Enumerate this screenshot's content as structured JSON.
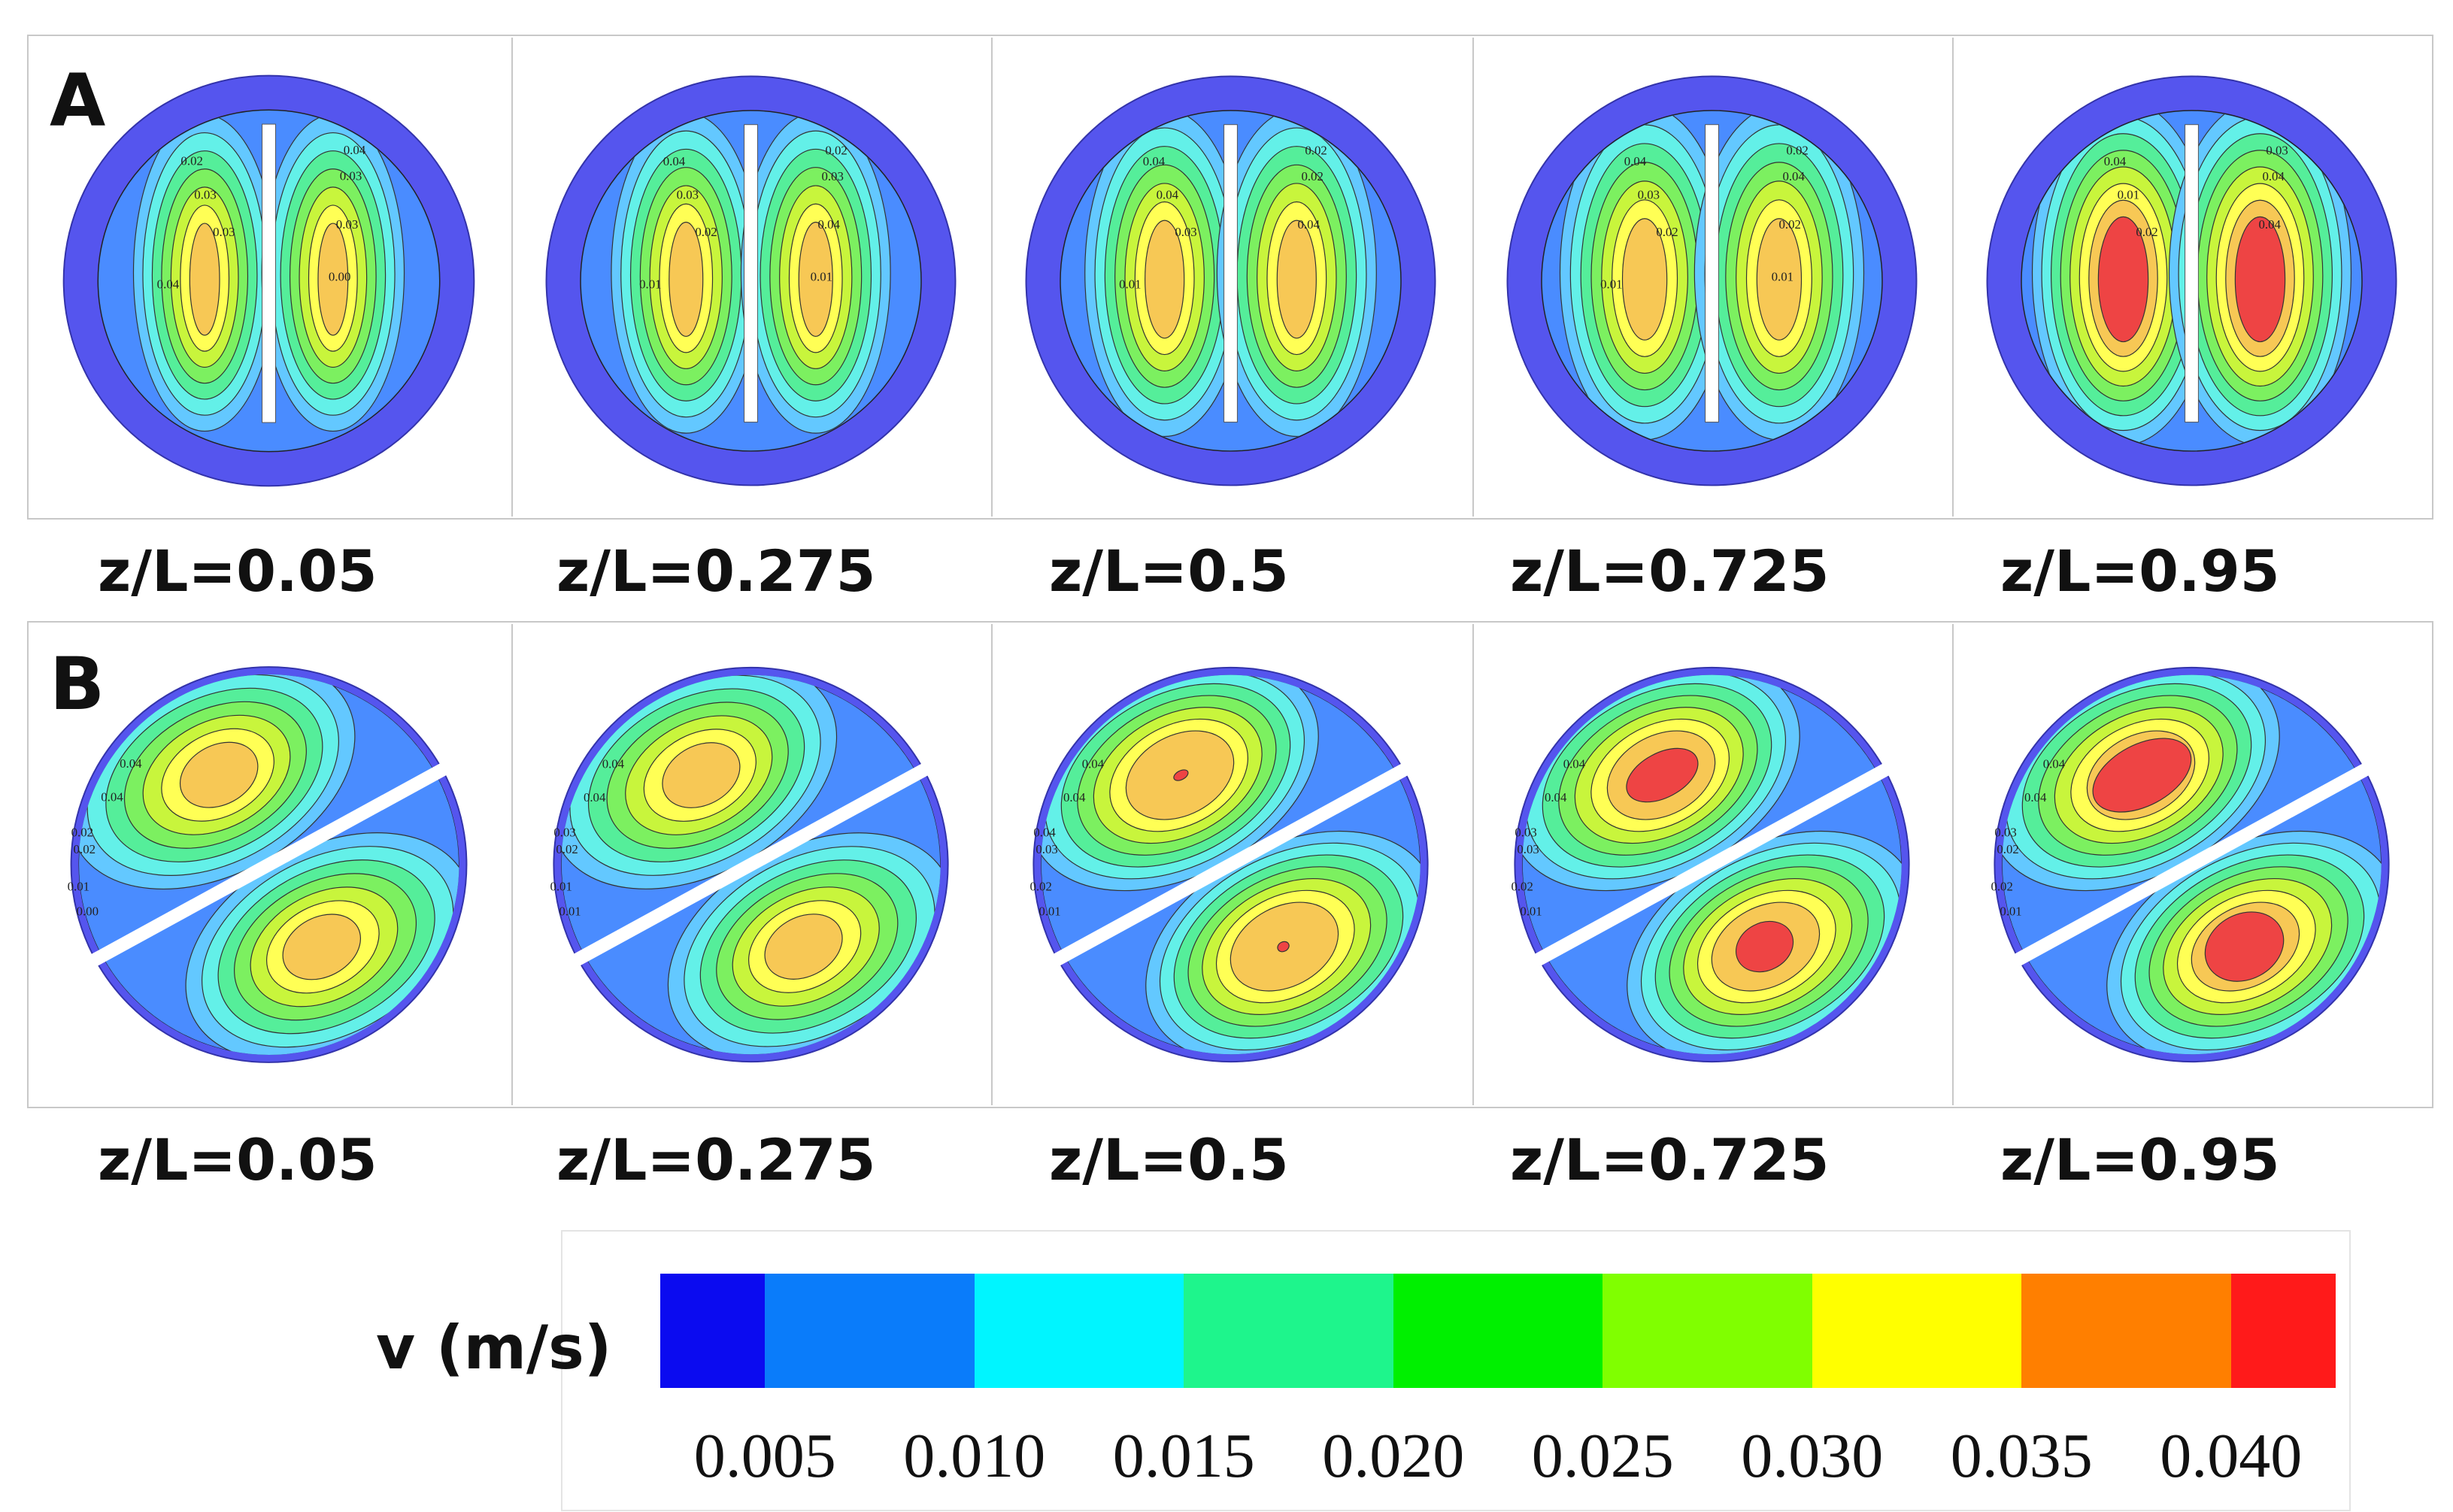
{
  "panels": [
    {
      "letter": "A",
      "captions": [
        "z/L=0.05",
        "z/L=0.275",
        "z/L=0.5",
        "z/L=0.725",
        "z/L=0.95"
      ]
    },
    {
      "letter": "B",
      "captions": [
        "z/L=0.05",
        "z/L=0.275",
        "z/L=0.5",
        "z/L=0.725",
        "z/L=0.95"
      ]
    }
  ],
  "contour_labels": {
    "A": [
      [
        "0.02",
        "0.03",
        "0.03",
        "0.04",
        "0.03",
        "0.03",
        "0.04",
        "0.00"
      ],
      [
        "0.04",
        "0.03",
        "0.02",
        "0.02",
        "0.03",
        "0.04",
        "0.01",
        "0.01"
      ],
      [
        "0.04",
        "0.04",
        "0.03",
        "0.02",
        "0.02",
        "0.04",
        "0.01"
      ],
      [
        "0.04",
        "0.03",
        "0.02",
        "0.02",
        "0.04",
        "0.02",
        "0.01",
        "0.01"
      ],
      [
        "0.04",
        "0.01",
        "0.02",
        "0.03",
        "0.04",
        "0.04"
      ]
    ],
    "B": [
      [
        "0.04",
        "0.04",
        "0.02",
        "0.02",
        "0.01",
        "0.00"
      ],
      [
        "0.04",
        "0.04",
        "0.03",
        "0.02",
        "0.01",
        "0.01"
      ],
      [
        "0.04",
        "0.04",
        "0.04",
        "0.03",
        "0.02",
        "0.01"
      ],
      [
        "0.04",
        "0.04",
        "0.03",
        "0.03",
        "0.02",
        "0.01"
      ],
      [
        "0.04",
        "0.04",
        "0.03",
        "0.02",
        "0.02",
        "0.01"
      ]
    ]
  },
  "legend": {
    "title": "v (m/s)",
    "colors": [
      "#0b0bf0",
      "#0a7cfa",
      "#00f5ff",
      "#1ef58c",
      "#00f000",
      "#80ff00",
      "#ffff00",
      "#ff7f00",
      "#ff1a1a"
    ],
    "ticks": [
      "0.005",
      "0.010",
      "0.015",
      "0.020",
      "0.025",
      "0.030",
      "0.035",
      "0.040"
    ]
  },
  "contour_colors": {
    "wall": "#5555ee",
    "levels": [
      "#4a8cff",
      "#63c8ff",
      "#63f0e8",
      "#55ee9a",
      "#7cf060",
      "#c8f53c",
      "#ffff55",
      "#f7c855",
      "#ee4444"
    ]
  }
}
